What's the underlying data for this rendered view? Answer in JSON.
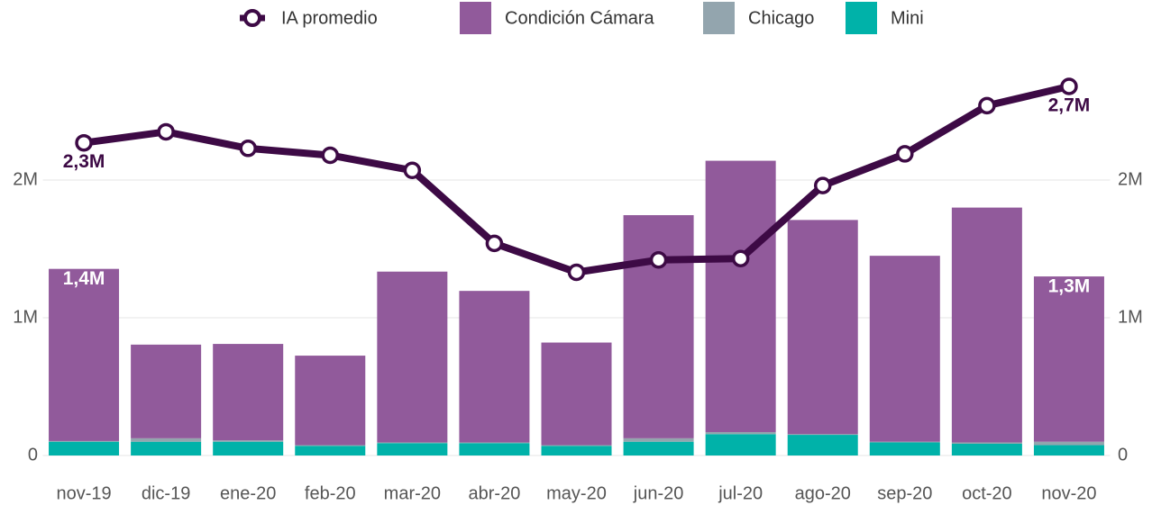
{
  "chart_data": {
    "type": "bar-line",
    "categories": [
      "nov-19",
      "dic-19",
      "ene-20",
      "feb-20",
      "mar-20",
      "abr-20",
      "may-20",
      "jun-20",
      "jul-20",
      "ago-20",
      "sep-20",
      "oct-20",
      "nov-20"
    ],
    "series": [
      {
        "name": "IA promedio",
        "type": "line",
        "axis": "y2",
        "color": "#3d0a45",
        "values": [
          2270000,
          2350000,
          2230000,
          2180000,
          2070000,
          1540000,
          1330000,
          1420000,
          1430000,
          1960000,
          2190000,
          2540000,
          2680000
        ],
        "value_labels": [
          "2,3M",
          null,
          null,
          null,
          null,
          null,
          null,
          null,
          null,
          null,
          null,
          null,
          "2,7M"
        ]
      },
      {
        "name": "Condición Cámara",
        "type": "bar",
        "color": "#915a9b",
        "values": [
          1250000,
          680000,
          700000,
          650000,
          1240000,
          1100000,
          745000,
          1620000,
          1970000,
          1555000,
          1350000,
          1705000,
          1200000
        ]
      },
      {
        "name": "Chicago",
        "type": "bar",
        "color": "#93a5ae",
        "values": [
          5000,
          25000,
          10000,
          5000,
          5000,
          5000,
          5000,
          25000,
          15000,
          5000,
          5000,
          10000,
          25000
        ]
      },
      {
        "name": "Mini",
        "type": "bar",
        "color": "#00b2a9",
        "values": [
          100000,
          100000,
          100000,
          70000,
          90000,
          90000,
          70000,
          100000,
          155000,
          150000,
          95000,
          85000,
          75000
        ]
      }
    ],
    "bar_total_labels": [
      "1,4M",
      null,
      null,
      null,
      null,
      null,
      null,
      null,
      null,
      null,
      null,
      null,
      "1,3M"
    ],
    "ylim": [
      0,
      2800000
    ],
    "yticks": [
      0,
      {
        "value": 1000000,
        "label": "1M"
      },
      {
        "value": 2000000,
        "label": "2M"
      }
    ],
    "y2lim": [
      0,
      2800000
    ],
    "y2ticks": [
      0,
      {
        "value": 1000000,
        "label": "1M"
      },
      {
        "value": 2000000,
        "label": "2M"
      }
    ],
    "grid": true,
    "legend": "top"
  }
}
